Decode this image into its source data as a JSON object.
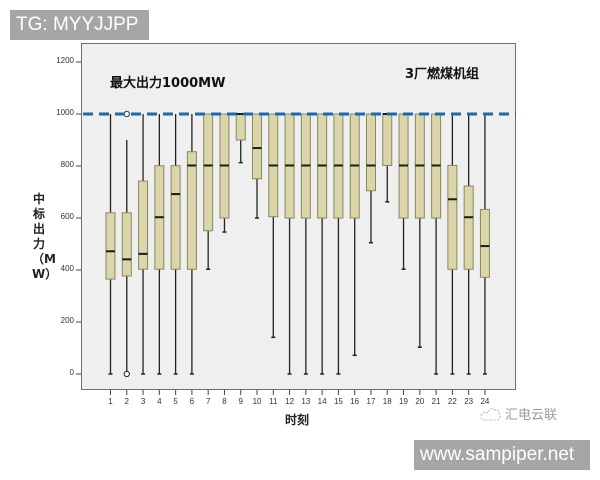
{
  "watermarks": {
    "top_tag": "TG: MYYJJPP",
    "bottom_tag": "www.sampiper.net",
    "brand": "汇电云联",
    "brand_icon": "cloud-icon"
  },
  "chart": {
    "annotation_left": "最大出力1000MW",
    "annotation_right": "3厂燃煤机组",
    "ylabel": "中标出力（MW）",
    "xlabel": "时刻"
  },
  "colors": {
    "box_fill": "#dbd6aa",
    "box_border": "#8a8660",
    "median": "#1a1a1a",
    "whisker": "#222222",
    "dashed_line": "#1f6aa5",
    "plot_bg": "#efefef"
  },
  "chart_data": {
    "type": "boxplot",
    "title": "",
    "xlabel": "时刻",
    "ylabel": "中标出力（MW）",
    "ylim": [
      0,
      1200
    ],
    "yticks": [
      0,
      200,
      400,
      600,
      800,
      1000,
      1200
    ],
    "categories": [
      "1",
      "2",
      "3",
      "4",
      "5",
      "6",
      "7",
      "8",
      "9",
      "10",
      "11",
      "12",
      "13",
      "14",
      "15",
      "16",
      "17",
      "18",
      "19",
      "20",
      "21",
      "22",
      "23",
      "24"
    ],
    "reference_line": {
      "y": 1000,
      "style": "dashed",
      "label": "最大出力1000MW"
    },
    "annotations": [
      "最大出力1000MW",
      "3厂燃煤机组"
    ],
    "grid": false,
    "boxes": [
      {
        "x": "1",
        "min": 0,
        "q1": 365,
        "median": 472,
        "q3": 620,
        "max": 1000,
        "outliers": []
      },
      {
        "x": "2",
        "min": 0,
        "q1": 377,
        "median": 441,
        "q3": 620,
        "max": 900,
        "outliers": [
          1000,
          0
        ]
      },
      {
        "x": "3",
        "min": 0,
        "q1": 403,
        "median": 462,
        "q3": 742,
        "max": 1000,
        "outliers": []
      },
      {
        "x": "4",
        "min": 0,
        "q1": 403,
        "median": 603,
        "q3": 801,
        "max": 1000,
        "outliers": []
      },
      {
        "x": "5",
        "min": 0,
        "q1": 403,
        "median": 692,
        "q3": 801,
        "max": 1000,
        "outliers": []
      },
      {
        "x": "6",
        "min": 0,
        "q1": 403,
        "median": 802,
        "q3": 855,
        "max": 1000,
        "outliers": []
      },
      {
        "x": "7",
        "min": 403,
        "q1": 551,
        "median": 802,
        "q3": 1000,
        "max": 1000,
        "outliers": []
      },
      {
        "x": "8",
        "min": 546,
        "q1": 600,
        "median": 802,
        "q3": 1000,
        "max": 1000,
        "outliers": []
      },
      {
        "x": "9",
        "min": 813,
        "q1": 900,
        "median": 1000,
        "q3": 1000,
        "max": 1000,
        "outliers": []
      },
      {
        "x": "10",
        "min": 600,
        "q1": 751,
        "median": 869,
        "q3": 1000,
        "max": 1000,
        "outliers": []
      },
      {
        "x": "11",
        "min": 141,
        "q1": 605,
        "median": 802,
        "q3": 1000,
        "max": 1000,
        "outliers": []
      },
      {
        "x": "12",
        "min": 0,
        "q1": 600,
        "median": 802,
        "q3": 1000,
        "max": 1000,
        "outliers": []
      },
      {
        "x": "13",
        "min": 0,
        "q1": 600,
        "median": 802,
        "q3": 1000,
        "max": 1000,
        "outliers": []
      },
      {
        "x": "14",
        "min": 0,
        "q1": 600,
        "median": 802,
        "q3": 1000,
        "max": 1000,
        "outliers": []
      },
      {
        "x": "15",
        "min": 0,
        "q1": 600,
        "median": 802,
        "q3": 1000,
        "max": 1000,
        "outliers": []
      },
      {
        "x": "16",
        "min": 72,
        "q1": 600,
        "median": 802,
        "q3": 1000,
        "max": 1000,
        "outliers": []
      },
      {
        "x": "17",
        "min": 505,
        "q1": 705,
        "median": 802,
        "q3": 1000,
        "max": 1000,
        "outliers": []
      },
      {
        "x": "18",
        "min": 662,
        "q1": 802,
        "median": 1000,
        "q3": 1000,
        "max": 1000,
        "outliers": []
      },
      {
        "x": "19",
        "min": 403,
        "q1": 600,
        "median": 802,
        "q3": 1000,
        "max": 1000,
        "outliers": []
      },
      {
        "x": "20",
        "min": 103,
        "q1": 600,
        "median": 802,
        "q3": 1000,
        "max": 1000,
        "outliers": []
      },
      {
        "x": "21",
        "min": 0,
        "q1": 600,
        "median": 802,
        "q3": 1000,
        "max": 1000,
        "outliers": []
      },
      {
        "x": "22",
        "min": 0,
        "q1": 403,
        "median": 672,
        "q3": 802,
        "max": 1000,
        "outliers": []
      },
      {
        "x": "23",
        "min": 0,
        "q1": 403,
        "median": 603,
        "q3": 723,
        "max": 1000,
        "outliers": []
      },
      {
        "x": "24",
        "min": 0,
        "q1": 372,
        "median": 492,
        "q3": 633,
        "max": 1000,
        "outliers": []
      }
    ]
  }
}
